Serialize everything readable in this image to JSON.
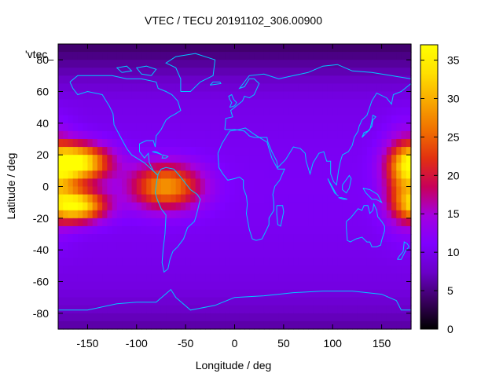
{
  "chart_data": {
    "type": "heatmap",
    "title": "VTEC / TECU 20191102_306.00900",
    "xlabel": "Longitude / deg",
    "ylabel": "Latitude / deg",
    "corner_label": "'vtec_",
    "xlim": [
      -180,
      180
    ],
    "ylim": [
      -90,
      90
    ],
    "x_ticks": [
      -150,
      -100,
      -50,
      0,
      50,
      100,
      150
    ],
    "y_ticks": [
      -80,
      -60,
      -40,
      -20,
      0,
      20,
      40,
      60,
      80
    ],
    "colorbar": {
      "range": [
        0,
        37
      ],
      "ticks": [
        0,
        5,
        10,
        15,
        20,
        25,
        30,
        35
      ],
      "palette": [
        "#000000",
        "#3a0060",
        "#6a00c8",
        "#7f00ff",
        "#a400e0",
        "#c8005a",
        "#e23010",
        "#f07000",
        "#f8a800",
        "#ffe000",
        "#ffff00"
      ]
    },
    "coastline_color": "#00c8ff",
    "grid": false,
    "features": [
      {
        "name": "equatorial-anomaly-pacific-north",
        "lon": -160,
        "lat": 15,
        "peak": 36,
        "sigma_lon": 22,
        "sigma_lat": 8
      },
      {
        "name": "equatorial-anomaly-pacific-south",
        "lon": -160,
        "lat": -12,
        "peak": 34,
        "sigma_lon": 20,
        "sigma_lat": 7
      },
      {
        "name": "equatorial-band-america",
        "lon": -70,
        "lat": 0,
        "peak": 28,
        "sigma_lon": 25,
        "sigma_lat": 10
      },
      {
        "name": "western-pacific-band",
        "lon": 175,
        "lat": 5,
        "peak": 25,
        "sigma_lon": 15,
        "sigma_lat": 18
      }
    ]
  }
}
